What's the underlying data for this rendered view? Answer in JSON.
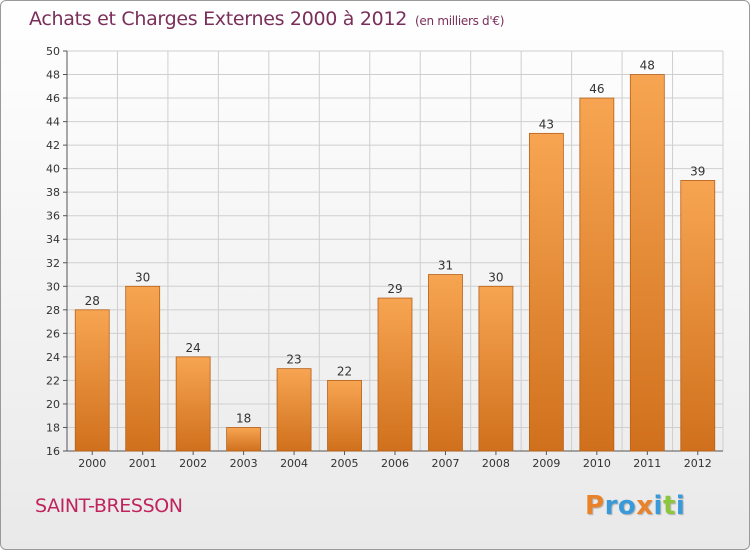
{
  "header": {
    "title": "Achats et Charges Externes 2000 à 2012",
    "subtitle": "(en milliers d'€)"
  },
  "footer": {
    "place": "SAINT-BRESSON",
    "logo": {
      "letters": [
        "P",
        "r",
        "o",
        "x",
        "i",
        "t",
        "i"
      ],
      "colors": [
        "#e8832a",
        "#3a9ad9",
        "#3a9ad9",
        "#e8832a",
        "#3a9ad9",
        "#8cc63f",
        "#3a9ad9"
      ]
    }
  },
  "chart_data": {
    "type": "bar",
    "title": "Achats et Charges Externes 2000 à 2012",
    "subtitle": "(en milliers d'€)",
    "categories": [
      "2000",
      "2001",
      "2002",
      "2003",
      "2004",
      "2005",
      "2006",
      "2007",
      "2008",
      "2009",
      "2010",
      "2011",
      "2012"
    ],
    "values": [
      28,
      30,
      24,
      18,
      23,
      22,
      29,
      31,
      30,
      43,
      46,
      48,
      39
    ],
    "ylim": [
      16,
      50
    ],
    "yticks": [
      16,
      18,
      20,
      22,
      24,
      26,
      28,
      30,
      32,
      34,
      36,
      38,
      40,
      42,
      44,
      46,
      48,
      50
    ],
    "grid": true,
    "data_labels": true,
    "colors": {
      "bar_top": "#f7a552",
      "bar_bottom": "#d0701c",
      "bar_border": "#b5601a",
      "grid": "#cfcfcf"
    }
  }
}
